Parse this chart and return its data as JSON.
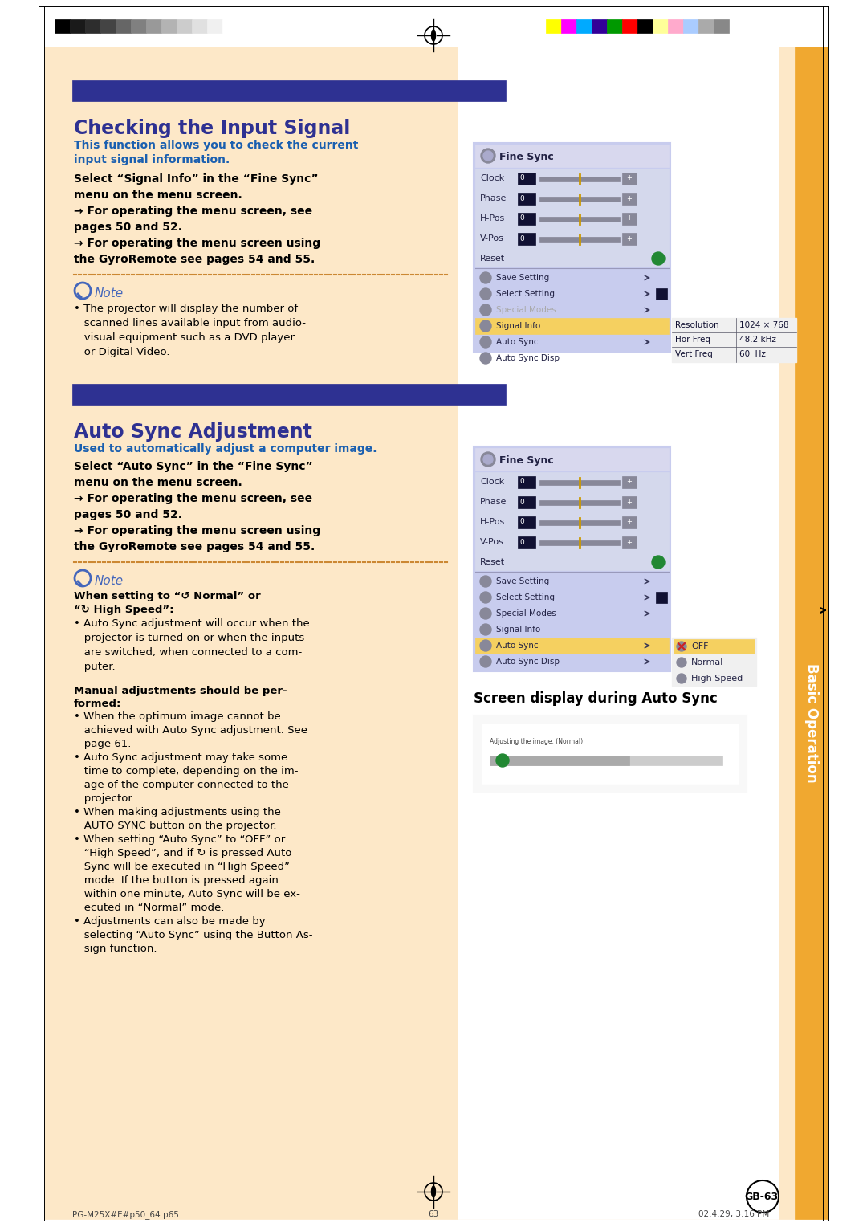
{
  "page_bg": "#ffffff",
  "content_bg": "#fde8c8",
  "sidebar_bg": "#f0a830",
  "header_bar_color": "#2e3192",
  "title1": "Checking the Input Signal",
  "title1_color": "#2e3192",
  "subtitle1_line1": "This function allows you to check the current",
  "subtitle1_line2": "input signal information.",
  "subtitle1_color": "#1a5fb0",
  "body1_lines": [
    "Select “Signal Info” in the “Fine Sync”",
    "menu on the menu screen.",
    "→ For operating the menu screen, see",
    "pages 50 and 52.",
    "→ For operating the menu screen using",
    "the GyroRemote see pages 54 and 55."
  ],
  "note_title": "Note",
  "note_lines": [
    "• The projector will display the number of",
    "   scanned lines available input from audio-",
    "   visual equipment such as a DVD player",
    "   or Digital Video."
  ],
  "title2": "Auto Sync Adjustment",
  "title2_color": "#2e3192",
  "subtitle2": "Used to automatically adjust a computer image.",
  "subtitle2_color": "#1a5fb0",
  "body2_lines": [
    "Select “Auto Sync” in the “Fine Sync”",
    "menu on the menu screen.",
    "→ For operating the menu screen, see",
    "pages 50 and 52.",
    "→ For operating the menu screen using",
    "the GyroRemote see pages 54 and 55."
  ],
  "note2_title": "Note",
  "note2_when": "When setting to “↺ Normal” or",
  "note2_when2": "“↻ High Speed”:",
  "note2_lines": [
    "• Auto Sync adjustment will occur when the",
    "   projector is turned on or when the inputs",
    "   are switched, when connected to a com-",
    "   puter."
  ],
  "manual_adj_title": "Manual adjustments should be per-",
  "manual_adj_title2": "formed:",
  "manual_adj_lines": [
    "• When the optimum image cannot be",
    "   achieved with Auto Sync adjustment. See",
    "   page 61.",
    "• Auto Sync adjustment may take some",
    "   time to complete, depending on the im-",
    "   age of the computer connected to the",
    "   projector.",
    "• When making adjustments using the",
    "   AUTO SYNC button on the projector.",
    "• When setting “Auto Sync” to “OFF” or",
    "   “High Speed”, and if ↻ is pressed Auto",
    "   Sync will be executed in “High Speed”",
    "   mode. If the button is pressed again",
    "   within one minute, Auto Sync will be ex-",
    "   ecuted in “Normal” mode.",
    "• Adjustments can also be made by",
    "   selecting “Auto Sync” using the Button As-",
    "   sign function."
  ],
  "screen_disp_title": "Screen display during Auto Sync",
  "footer_left": "PG-M25X#E#p50_64.p65",
  "footer_center": "63",
  "footer_right": "02.4.29, 3:16 PM",
  "page_num": "GB-63",
  "sidebar_text": "Basic Operation",
  "grayscale_colors": [
    "#000000",
    "#1a1a1a",
    "#2d2d2d",
    "#444444",
    "#666666",
    "#808080",
    "#999999",
    "#b3b3b3",
    "#cccccc",
    "#e0e0e0",
    "#f0f0f0",
    "#ffffff"
  ],
  "color_bar_colors": [
    "#ffff00",
    "#ff00ff",
    "#00aaff",
    "#330099",
    "#009900",
    "#ff0000",
    "#000000",
    "#ffff99",
    "#ffaacc",
    "#aaccff",
    "#aaaaaa",
    "#888888"
  ],
  "menu_bg": "#c8ccee",
  "menu_title_bar_bg": "#aaaacc",
  "menu_selected_row": "#f5d060",
  "menu_row_sep": "#9999bb"
}
